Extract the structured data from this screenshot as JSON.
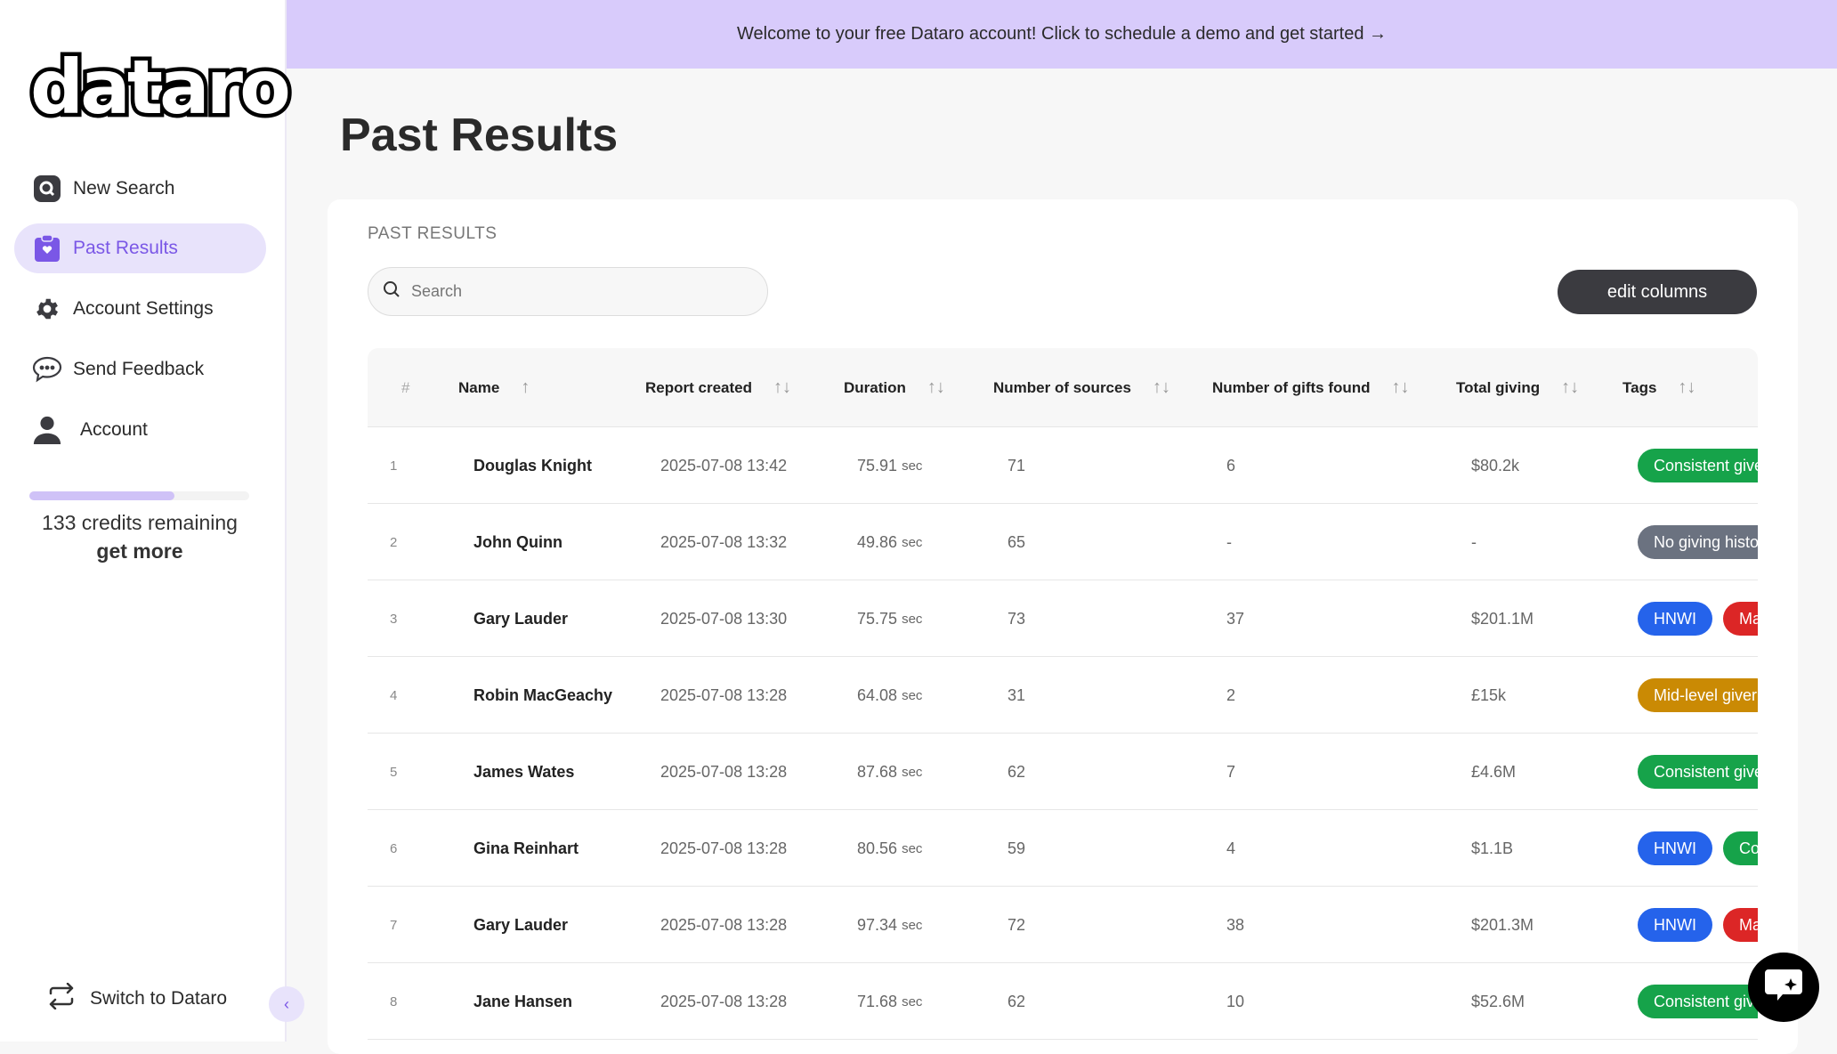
{
  "brand": {
    "logo": "dataro"
  },
  "banner": {
    "text": "Welcome to your free Dataro account! Click to schedule a demo and get started →"
  },
  "sidebar": {
    "items": [
      {
        "label": "New Search",
        "icon": "search-icon"
      },
      {
        "label": "Past Results",
        "icon": "clipboard-icon",
        "active": true
      },
      {
        "label": "Account Settings",
        "icon": "gear-icon"
      },
      {
        "label": "Send Feedback",
        "icon": "chat-bubble-icon"
      },
      {
        "label": "Account",
        "icon": "user-icon"
      }
    ],
    "credits": {
      "text": "133 credits remaining",
      "link": "get more",
      "fraction": 0.66
    },
    "switch_label": "Switch to Dataro"
  },
  "page": {
    "title": "Past Results"
  },
  "card": {
    "label": "PAST RESULTS",
    "search_placeholder": "Search",
    "edit_columns": "edit columns"
  },
  "table": {
    "columns": [
      "#",
      "Name",
      "Report created",
      "Duration",
      "Number of sources",
      "Number of gifts found",
      "Total giving",
      "Tags"
    ],
    "rows": [
      {
        "n": "1",
        "name": "Douglas Knight",
        "created": "2025-07-08 13:42",
        "duration": "75.91",
        "unit": "sec",
        "sources": "71",
        "gifts": "6",
        "total": "$80.2k",
        "tags": [
          {
            "t": "Consistent giver",
            "c": "#16a34a"
          }
        ]
      },
      {
        "n": "2",
        "name": "John Quinn",
        "created": "2025-07-08 13:32",
        "duration": "49.86",
        "unit": "sec",
        "sources": "65",
        "gifts": "-",
        "total": "-",
        "tags": [
          {
            "t": "No giving history",
            "c": "#6b7280"
          }
        ]
      },
      {
        "n": "3",
        "name": "Gary Lauder",
        "created": "2025-07-08 13:30",
        "duration": "75.75",
        "unit": "sec",
        "sources": "73",
        "gifts": "37",
        "total": "$201.1M",
        "tags": [
          {
            "t": "HNWI",
            "c": "#2563eb"
          },
          {
            "t": "Ma",
            "c": "#dc2626"
          }
        ]
      },
      {
        "n": "4",
        "name": "Robin MacGeachy",
        "created": "2025-07-08 13:28",
        "duration": "64.08",
        "unit": "sec",
        "sources": "31",
        "gifts": "2",
        "total": "£15k",
        "tags": [
          {
            "t": "Mid-level giver",
            "c": "#ca8a04"
          }
        ]
      },
      {
        "n": "5",
        "name": "James Wates",
        "created": "2025-07-08 13:28",
        "duration": "87.68",
        "unit": "sec",
        "sources": "62",
        "gifts": "7",
        "total": "£4.6M",
        "tags": [
          {
            "t": "Consistent giver",
            "c": "#16a34a"
          }
        ]
      },
      {
        "n": "6",
        "name": "Gina Reinhart",
        "created": "2025-07-08 13:28",
        "duration": "80.56",
        "unit": "sec",
        "sources": "59",
        "gifts": "4",
        "total": "$1.1B",
        "tags": [
          {
            "t": "HNWI",
            "c": "#2563eb"
          },
          {
            "t": "Co",
            "c": "#16a34a"
          }
        ]
      },
      {
        "n": "7",
        "name": "Gary Lauder",
        "created": "2025-07-08 13:28",
        "duration": "97.34",
        "unit": "sec",
        "sources": "72",
        "gifts": "38",
        "total": "$201.3M",
        "tags": [
          {
            "t": "HNWI",
            "c": "#2563eb"
          },
          {
            "t": "Ma",
            "c": "#dc2626"
          }
        ]
      },
      {
        "n": "8",
        "name": "Jane Hansen",
        "created": "2025-07-08 13:28",
        "duration": "71.68",
        "unit": "sec",
        "sources": "62",
        "gifts": "10",
        "total": "$52.6M",
        "tags": [
          {
            "t": "Consistent giver",
            "c": "#16a34a"
          }
        ]
      }
    ]
  },
  "colors": {
    "accent": "#7a57e6",
    "banner": "#d8cbfb",
    "button": "#3b3b40"
  }
}
